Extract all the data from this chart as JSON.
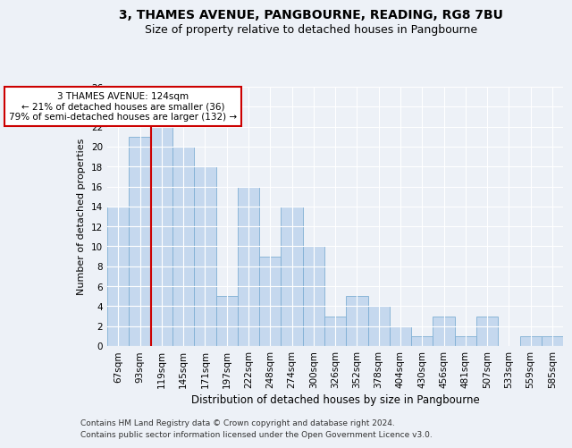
{
  "title1": "3, THAMES AVENUE, PANGBOURNE, READING, RG8 7BU",
  "title2": "Size of property relative to detached houses in Pangbourne",
  "xlabel": "Distribution of detached houses by size in Pangbourne",
  "ylabel": "Number of detached properties",
  "categories": [
    "67sqm",
    "93sqm",
    "119sqm",
    "145sqm",
    "171sqm",
    "197sqm",
    "222sqm",
    "248sqm",
    "274sqm",
    "300sqm",
    "326sqm",
    "352sqm",
    "378sqm",
    "404sqm",
    "430sqm",
    "456sqm",
    "481sqm",
    "507sqm",
    "533sqm",
    "559sqm",
    "585sqm"
  ],
  "values": [
    14,
    21,
    22,
    20,
    18,
    5,
    16,
    9,
    14,
    10,
    3,
    5,
    4,
    2,
    1,
    3,
    1,
    3,
    0,
    1,
    1
  ],
  "bar_color": "#c5d8ee",
  "bar_edge_color": "#7fafd4",
  "property_line_color": "#cc0000",
  "property_line_x": 1.5,
  "annotation_text": "3 THAMES AVENUE: 124sqm\n← 21% of detached houses are smaller (36)\n79% of semi-detached houses are larger (132) →",
  "annotation_box_color": "#ffffff",
  "annotation_box_edge": "#cc0000",
  "ylim": [
    0,
    26
  ],
  "yticks": [
    0,
    2,
    4,
    6,
    8,
    10,
    12,
    14,
    16,
    18,
    20,
    22,
    24,
    26
  ],
  "background_color": "#edf1f7",
  "plot_bg_color": "#edf1f7",
  "footer1": "Contains HM Land Registry data © Crown copyright and database right 2024.",
  "footer2": "Contains public sector information licensed under the Open Government Licence v3.0.",
  "title1_fontsize": 10,
  "title2_fontsize": 9,
  "xlabel_fontsize": 8.5,
  "ylabel_fontsize": 8,
  "tick_fontsize": 7.5,
  "footer_fontsize": 6.5,
  "annot_fontsize": 7.5
}
